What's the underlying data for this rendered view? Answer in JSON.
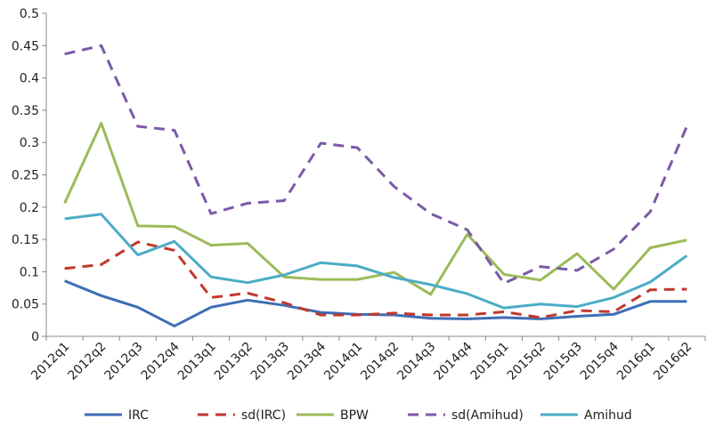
{
  "chart_data": {
    "type": "line",
    "title": "",
    "xlabel": "",
    "ylabel": "",
    "ylim": [
      0,
      0.5
    ],
    "yticks": [
      "0",
      "0.05",
      "0.1",
      "0.15",
      "0.2",
      "0.25",
      "0.3",
      "0.35",
      "0.4",
      "0.45",
      "0.5"
    ],
    "grid": false,
    "legend_position": "bottom",
    "categories": [
      "2012q1",
      "2012q2",
      "2012q3",
      "2012q4",
      "2013q1",
      "2013q2",
      "2013q3",
      "2013q4",
      "2014q1",
      "2014q2",
      "2014q3",
      "2014q4",
      "2015q1",
      "2015q2",
      "2015q3",
      "2015q4",
      "2016q1",
      "2016q2"
    ],
    "series": [
      {
        "name": "IRC",
        "color": "#3d6eb5",
        "dashed": false,
        "values": [
          0.086,
          0.063,
          0.045,
          0.016,
          0.045,
          0.056,
          0.048,
          0.037,
          0.034,
          0.033,
          0.028,
          0.027,
          0.029,
          0.027,
          0.031,
          0.034,
          0.054,
          0.054
        ]
      },
      {
        "name": "sd(IRC)",
        "color": "#c0392b",
        "dashed": true,
        "values": [
          0.105,
          0.111,
          0.146,
          0.133,
          0.06,
          0.067,
          0.052,
          0.033,
          0.033,
          0.036,
          0.033,
          0.033,
          0.038,
          0.029,
          0.04,
          0.038,
          0.072,
          0.073
        ]
      },
      {
        "name": "BPW",
        "color": "#9bbb59",
        "dashed": false,
        "values": [
          0.206,
          0.33,
          0.171,
          0.17,
          0.141,
          0.144,
          0.092,
          0.088,
          0.088,
          0.099,
          0.065,
          0.158,
          0.096,
          0.087,
          0.128,
          0.073,
          0.137,
          0.149
        ]
      },
      {
        "name": "sd(Amihud)",
        "color": "#7b5aa6",
        "dashed": true,
        "values": [
          0.437,
          0.45,
          0.325,
          0.319,
          0.19,
          0.206,
          0.21,
          0.299,
          0.292,
          0.232,
          0.19,
          0.165,
          0.082,
          0.108,
          0.102,
          0.135,
          0.193,
          0.325
        ]
      },
      {
        "name": "Amihud",
        "color": "#4bacc6",
        "dashed": false,
        "values": [
          0.182,
          0.189,
          0.126,
          0.147,
          0.092,
          0.083,
          0.095,
          0.114,
          0.109,
          0.091,
          0.08,
          0.066,
          0.044,
          0.05,
          0.046,
          0.06,
          0.084,
          0.125
        ]
      }
    ]
  }
}
